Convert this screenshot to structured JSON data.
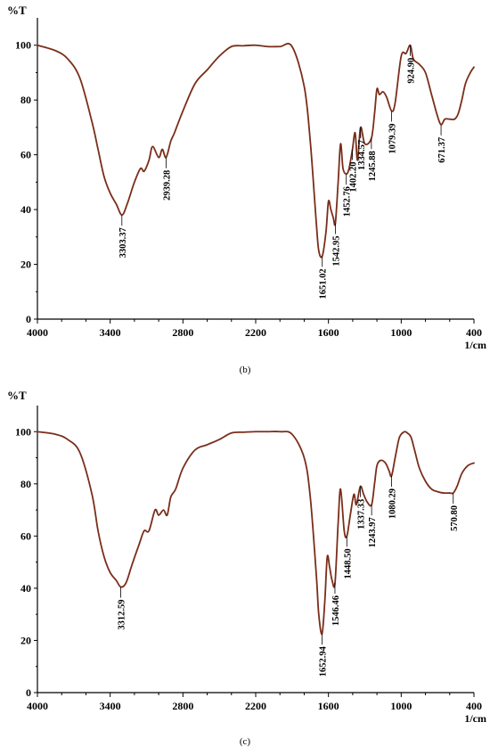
{
  "colors": {
    "spectrum": "#7a2e1a",
    "axis": "#000000"
  },
  "chart_data": [
    {
      "type": "line",
      "panel_label": "(b)",
      "ylabel": "%T",
      "xlabel": "1/cm",
      "xlim": [
        4000,
        400
      ],
      "ylim": [
        0,
        110
      ],
      "x_ticks": [
        4000,
        3400,
        2800,
        2200,
        1600,
        1000,
        400
      ],
      "y_ticks": [
        0,
        20,
        40,
        60,
        80,
        100
      ],
      "grid": false,
      "series": [
        {
          "x": [
            4000,
            3850,
            3750,
            3650,
            3550,
            3500,
            3450,
            3400,
            3350,
            3303,
            3260,
            3200,
            3150,
            3120,
            3080,
            3050,
            3000,
            2970,
            2939,
            2900,
            2870,
            2800,
            2700,
            2600,
            2500,
            2400,
            2300,
            2200,
            2100,
            2000,
            1900,
            1800,
            1750,
            1700,
            1680,
            1651,
            1620,
            1600,
            1580,
            1560,
            1543,
            1520,
            1500,
            1480,
            1453,
            1430,
            1402,
            1380,
            1360,
            1335,
            1300,
            1246,
            1220,
            1200,
            1180,
            1150,
            1120,
            1079,
            1050,
            1000,
            960,
            925,
            900,
            850,
            800,
            750,
            700,
            671,
            640,
            600,
            560,
            530,
            500,
            470,
            430,
            400
          ],
          "y": [
            100,
            98,
            95,
            88,
            72,
            62,
            52,
            46,
            42,
            38,
            42,
            50,
            55,
            54,
            58,
            63,
            59,
            62,
            59,
            65,
            68,
            76,
            86,
            91,
            96,
            99.5,
            99.8,
            100,
            99.5,
            99.5,
            99.5,
            85,
            65,
            35,
            25,
            23,
            32,
            43,
            40,
            37,
            35,
            50,
            64,
            55,
            53,
            55,
            62,
            68,
            58,
            70,
            64,
            66,
            75,
            84,
            82,
            83,
            81,
            76,
            79,
            96,
            97,
            100,
            95,
            93,
            90,
            82,
            74,
            71,
            73,
            73,
            73,
            75,
            80,
            86,
            90,
            92
          ]
        }
      ],
      "annotations": [
        {
          "x": 3303.37,
          "y": 38,
          "label": "3303.37"
        },
        {
          "x": 2939.28,
          "y": 59,
          "label": "2939.28"
        },
        {
          "x": 1651.02,
          "y": 23,
          "label": "1651.02"
        },
        {
          "x": 1542.95,
          "y": 35,
          "label": "1542.95"
        },
        {
          "x": 1452.76,
          "y": 53,
          "label": "1452.76"
        },
        {
          "x": 1402.2,
          "y": 62,
          "label": "1402.20"
        },
        {
          "x": 1334.57,
          "y": 70,
          "label": "1334.57"
        },
        {
          "x": 1245.88,
          "y": 66,
          "label": "1245.88"
        },
        {
          "x": 1079.39,
          "y": 76,
          "label": "1079.39"
        },
        {
          "x": 924.9,
          "y": 100,
          "label": "924.90"
        },
        {
          "x": 671.37,
          "y": 71,
          "label": "671.37"
        }
      ]
    },
    {
      "type": "line",
      "panel_label": "(c)",
      "ylabel": "%T",
      "xlabel": "1/cm",
      "xlim": [
        4000,
        400
      ],
      "ylim": [
        0,
        110
      ],
      "x_ticks": [
        4000,
        3400,
        2800,
        2200,
        1600,
        1000,
        400
      ],
      "y_ticks": [
        0,
        20,
        40,
        60,
        80,
        100
      ],
      "grid": false,
      "series": [
        {
          "x": [
            4000,
            3850,
            3750,
            3650,
            3550,
            3500,
            3450,
            3400,
            3350,
            3313,
            3270,
            3220,
            3160,
            3120,
            3080,
            3030,
            3000,
            2960,
            2930,
            2900,
            2860,
            2800,
            2700,
            2600,
            2500,
            2400,
            2300,
            2200,
            2100,
            2000,
            1900,
            1800,
            1750,
            1700,
            1680,
            1653,
            1630,
            1610,
            1590,
            1570,
            1546,
            1520,
            1500,
            1470,
            1448,
            1420,
            1390,
            1370,
            1337,
            1310,
            1280,
            1244,
            1220,
            1200,
            1170,
            1130,
            1100,
            1080,
            1050,
            1020,
            1000,
            970,
            950,
            920,
            890,
            850,
            800,
            750,
            700,
            650,
            600,
            571,
            540,
            500,
            450,
            400
          ],
          "y": [
            100,
            99,
            97,
            92,
            76,
            62,
            52,
            46,
            43,
            40.5,
            42,
            49,
            57,
            62,
            62,
            70,
            68,
            70,
            68,
            75,
            78,
            86,
            93,
            95,
            97,
            99.5,
            99.8,
            100,
            100,
            100,
            99,
            90,
            75,
            45,
            30,
            22.5,
            35,
            52,
            48,
            43,
            42,
            65,
            78,
            62,
            60,
            68,
            76,
            72,
            79,
            76,
            73,
            72,
            80,
            87,
            89,
            88,
            85,
            83,
            90,
            97,
            99,
            100,
            99.5,
            98,
            93,
            86,
            81,
            78,
            77,
            76.5,
            76.5,
            76.5,
            79,
            84,
            87,
            88
          ]
        }
      ],
      "annotations": [
        {
          "x": 3312.59,
          "y": 40.5,
          "label": "3312.59"
        },
        {
          "x": 1652.94,
          "y": 22.5,
          "label": "1652.94"
        },
        {
          "x": 1546.46,
          "y": 42,
          "label": "1546.46"
        },
        {
          "x": 1448.5,
          "y": 60,
          "label": "1448.50"
        },
        {
          "x": 1337.33,
          "y": 79,
          "label": "1337.33"
        },
        {
          "x": 1243.97,
          "y": 72,
          "label": "1243.97"
        },
        {
          "x": 1080.29,
          "y": 83,
          "label": "1080.29"
        },
        {
          "x": 570.8,
          "y": 76.5,
          "label": "570.80"
        }
      ]
    }
  ]
}
